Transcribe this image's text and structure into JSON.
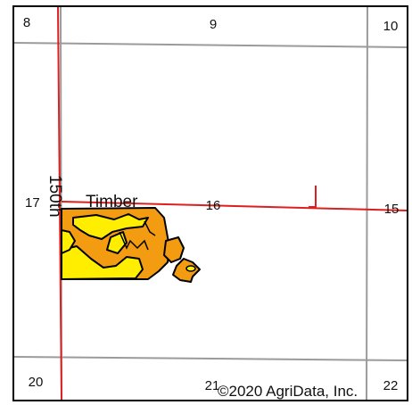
{
  "map": {
    "sections": {
      "s8": "8",
      "s9": "9",
      "s10": "10",
      "s17": "17",
      "s16": "16",
      "s15": "15",
      "s20": "20",
      "s21": "21",
      "s22": "22"
    },
    "roads": {
      "vertical": "150th",
      "horizontal": "Timber"
    },
    "copyright": "©2020 AgriData, Inc.",
    "colors": {
      "road": "#dd1f1f",
      "section_line": "#9b9b9b",
      "soil_orange": "#f39c12",
      "soil_yellow": "#ffee00",
      "outline": "#000000"
    }
  }
}
